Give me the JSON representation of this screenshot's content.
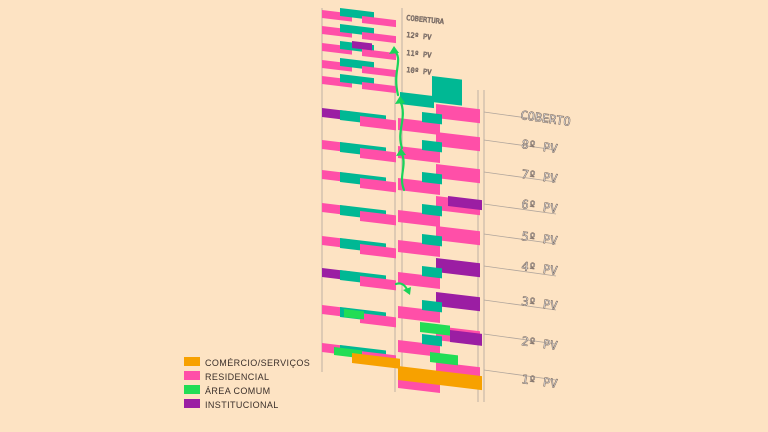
{
  "colors": {
    "background": "#fde3c3",
    "comercio": "#f7a100",
    "residencial": "#ff4fa8",
    "area_comum": "#00b894",
    "area_comum_light": "#22dd55",
    "institucional": "#9b1ea3",
    "grid_line": "#b0a59c",
    "arrow": "#19d35a"
  },
  "floor_labels_right": [
    "COBERTO",
    "8º PV",
    "7º PV",
    "6º PV",
    "5º PV",
    "4º PV",
    "3º PV",
    "2º PV",
    "1º PV"
  ],
  "floor_labels_top": [
    "COBERTURA",
    "12º PV",
    "11º PV",
    "10º PV"
  ],
  "legend": [
    {
      "label": "COMÉRCIO/SERVIÇOS",
      "color_key": "comercio"
    },
    {
      "label": "RESIDENCIAL",
      "color_key": "residencial"
    },
    {
      "label": "ÁREA COMUM",
      "color_key": "area_comum_light"
    },
    {
      "label": "INSTITUCIONAL",
      "color_key": "institucional"
    }
  ]
}
